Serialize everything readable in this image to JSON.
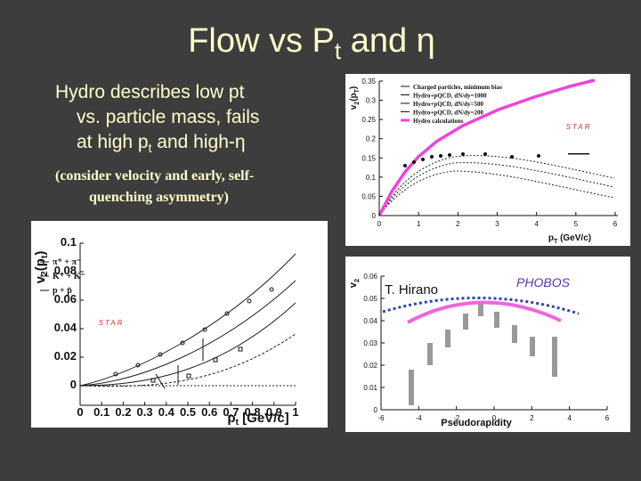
{
  "title": {
    "main": "Flow vs P",
    "sub": "t",
    "rest": " and η"
  },
  "bullet": {
    "lines": [
      "Hydro describes low pt",
      "vs. particle mass, fails"
    ],
    "last": {
      "main": "at high p",
      "sub": "t",
      "rest": " and high-η"
    }
  },
  "note": [
    "(consider velocity and early, self-",
    "quenching asymmetry)"
  ],
  "plots": [
    {
      "ylabel": [
        "v",
        "2",
        "(p",
        "T",
        ")"
      ],
      "xlabel": [
        "p",
        "T",
        " (GeV/c)"
      ],
      "xticks": [
        0,
        1,
        2,
        3,
        4,
        5,
        6
      ],
      "yticks": [
        0,
        0.05,
        0.1,
        0.15,
        0.2,
        0.25,
        0.3,
        0.35
      ],
      "legend": [
        "Charged particles, minimum bias",
        "Hydro+pQCD, dN/dy=1000",
        "Hydro+pQCD, dN/dy=500",
        "Hydro+pQCD, dN/dy=200",
        "Hydro calculations"
      ],
      "logo": "STAR"
    },
    {
      "ylabel": [
        "v",
        "2",
        "(p",
        "t",
        ")"
      ],
      "xlabel": [
        "p",
        "t",
        " [GeV/c]"
      ],
      "xticks": [
        0,
        0.1,
        0.2,
        0.3,
        0.4,
        0.5,
        0.6,
        0.7,
        0.8,
        0.9,
        1
      ],
      "yticks": [
        0,
        0.02,
        0.04,
        0.06,
        0.08,
        0.1
      ],
      "legend": [
        "π⁺ + π⁻",
        "K⁺ + K⁻",
        "p + p̄"
      ],
      "logo": "STAR"
    },
    {
      "ylabel": [
        "v",
        "2"
      ],
      "xlabel": [
        "Pseudorapidity"
      ],
      "xticks": [
        -6,
        -4,
        -2,
        0,
        2,
        4,
        6
      ],
      "yticks": [
        0,
        0.01,
        0.02,
        0.03,
        0.04,
        0.05,
        0.06
      ],
      "annotation": "T. Hirano",
      "logo": "PHOBOS"
    }
  ]
}
